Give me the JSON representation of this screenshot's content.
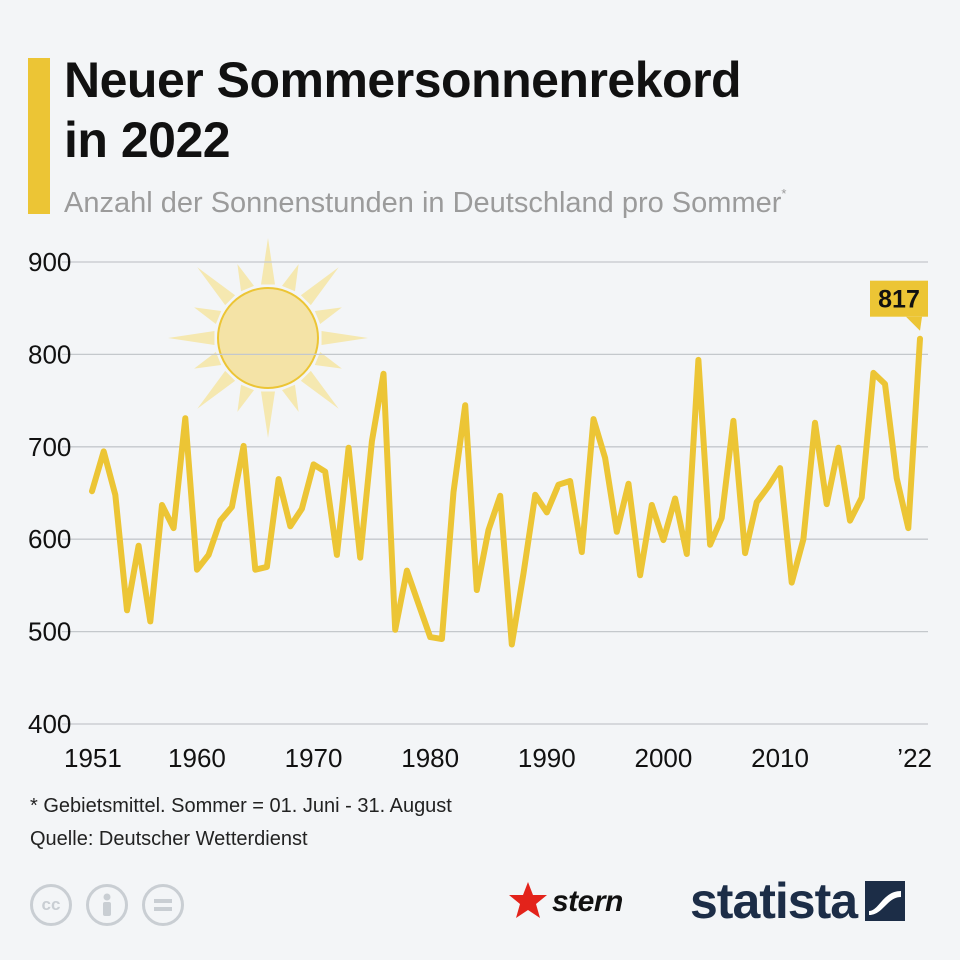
{
  "header": {
    "title_line1": "Neuer Sommersonnenrekord",
    "title_line2": "in 2022",
    "subtitle": "Anzahl der Sonnenstunden in Deutschland pro Sommer",
    "subtitle_marker": "*"
  },
  "chart_data": {
    "type": "line",
    "title": "Neuer Sommersonnenrekord in 2022",
    "subtitle": "Anzahl der Sonnenstunden in Deutschland pro Sommer*",
    "xlabel": "",
    "ylabel": "",
    "ylim": [
      400,
      900
    ],
    "y_ticks": [
      900,
      800,
      700,
      600,
      500,
      400
    ],
    "x_tick_labels": [
      {
        "year": 1951,
        "label": "1951"
      },
      {
        "year": 1960,
        "label": "1960"
      },
      {
        "year": 1970,
        "label": "1970"
      },
      {
        "year": 1980,
        "label": "1980"
      },
      {
        "year": 1990,
        "label": "1990"
      },
      {
        "year": 2000,
        "label": "2000"
      },
      {
        "year": 2010,
        "label": "2010"
      },
      {
        "year": 2022,
        "label": "’22"
      }
    ],
    "grid": true,
    "series": [
      {
        "name": "Sonnenstunden",
        "color": "#ecc535",
        "x": [
          1951,
          1952,
          1953,
          1954,
          1955,
          1956,
          1957,
          1958,
          1959,
          1960,
          1961,
          1962,
          1963,
          1964,
          1965,
          1966,
          1967,
          1968,
          1969,
          1970,
          1971,
          1972,
          1973,
          1974,
          1975,
          1976,
          1977,
          1978,
          1979,
          1980,
          1981,
          1982,
          1983,
          1984,
          1985,
          1986,
          1987,
          1988,
          1989,
          1990,
          1991,
          1992,
          1993,
          1994,
          1995,
          1996,
          1997,
          1998,
          1999,
          2000,
          2001,
          2002,
          2003,
          2004,
          2005,
          2006,
          2007,
          2008,
          2009,
          2010,
          2011,
          2012,
          2013,
          2014,
          2015,
          2016,
          2017,
          2018,
          2019,
          2020,
          2021,
          2022
        ],
        "values": [
          652,
          695,
          648,
          523,
          593,
          511,
          637,
          612,
          731,
          567,
          583,
          620,
          635,
          701,
          567,
          570,
          665,
          614,
          633,
          681,
          673,
          583,
          699,
          580,
          706,
          779,
          502,
          566,
          530,
          494,
          492,
          651,
          745,
          545,
          610,
          647,
          486,
          563,
          648,
          629,
          659,
          663,
          586,
          730,
          688,
          608,
          660,
          561,
          637,
          599,
          644,
          584,
          794,
          594,
          623,
          728,
          585,
          640,
          657,
          677,
          553,
          600,
          726,
          638,
          699,
          620,
          645,
          780,
          768,
          666,
          612,
          817
        ]
      }
    ],
    "annotations": [
      {
        "year": 2022,
        "value": 817,
        "label": "817"
      }
    ]
  },
  "footer": {
    "footnote": "* Gebietsmittel. Sommer = 01. Juni - 31. August",
    "source": "Quelle: Deutscher Wetterdienst",
    "cc_icons": [
      "cc-icon",
      "attribution-icon",
      "noderivs-icon"
    ],
    "cc_label": "cc",
    "stern_logo": "stern",
    "statista_logo": "statista"
  }
}
